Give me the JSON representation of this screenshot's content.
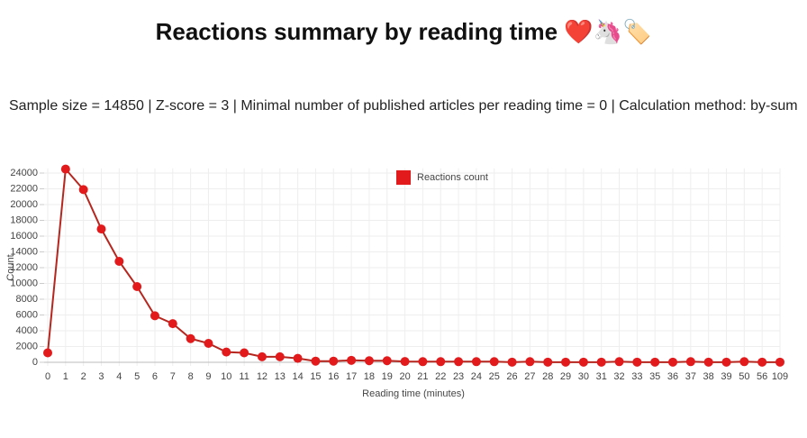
{
  "chart_data": {
    "type": "line",
    "title": "Reactions summary by reading time ❤️🦄🏷️",
    "subtitle": "Sample size = 14850 | Z-score = 3 | Minimal number of published articles per reading time = 0 | Calculation method: by-sum",
    "x_label": "Reading time (minutes)",
    "y_label": "Count",
    "categories": [
      "0",
      "1",
      "2",
      "3",
      "4",
      "5",
      "6",
      "7",
      "8",
      "9",
      "10",
      "11",
      "12",
      "13",
      "14",
      "15",
      "16",
      "17",
      "18",
      "19",
      "20",
      "21",
      "22",
      "23",
      "24",
      "25",
      "26",
      "27",
      "28",
      "29",
      "30",
      "31",
      "32",
      "33",
      "35",
      "36",
      "37",
      "38",
      "39",
      "50",
      "56",
      "109"
    ],
    "series": [
      {
        "name": "Reactions count",
        "color": "#e31a1c",
        "line_color": "#b5261e",
        "values": [
          1200,
          24500,
          21900,
          16900,
          12800,
          9600,
          5900,
          4900,
          3000,
          2400,
          1300,
          1200,
          700,
          700,
          500,
          150,
          150,
          250,
          200,
          200,
          100,
          80,
          80,
          80,
          80,
          80,
          20,
          80,
          20,
          20,
          20,
          20,
          80,
          20,
          20,
          20,
          80,
          20,
          20,
          80,
          20,
          20
        ]
      }
    ],
    "ylim": [
      0,
      24600
    ],
    "yticks": [
      0,
      2000,
      4000,
      6000,
      8000,
      10000,
      12000,
      14000,
      16000,
      18000,
      20000,
      22000,
      24000
    ],
    "grid": true,
    "legend": "top"
  }
}
